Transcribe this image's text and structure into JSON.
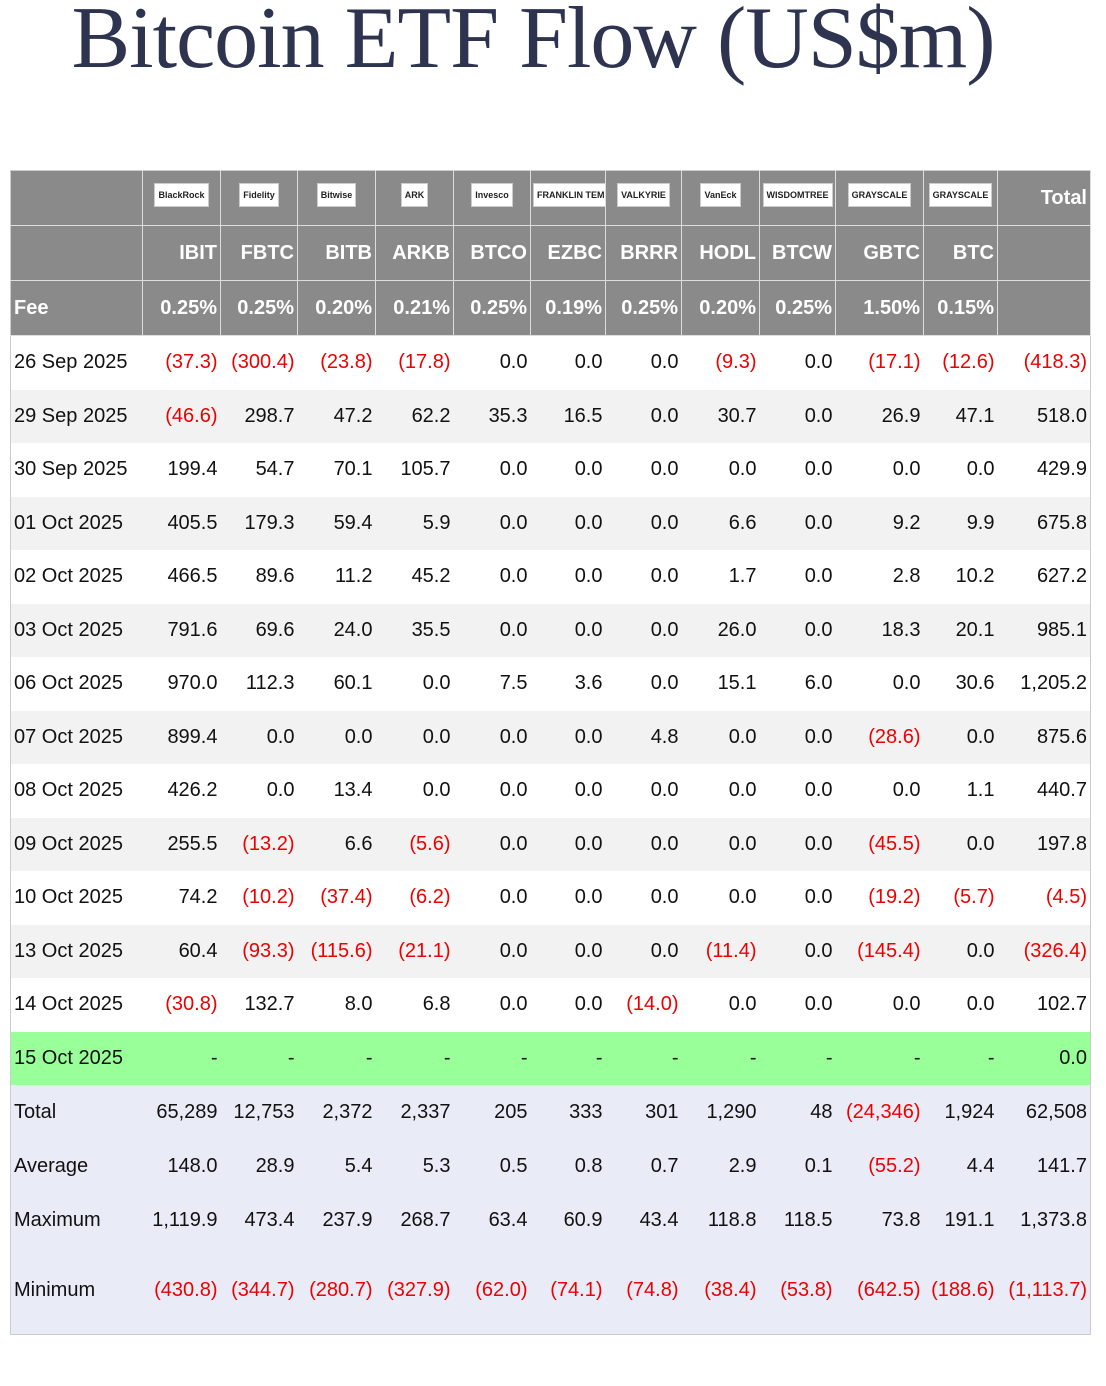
{
  "title": "Bitcoin ETF Flow (US$m)",
  "table": {
    "logos": [
      "BlackRock",
      "Fidelity",
      "Bitwise",
      "ARK",
      "Invesco",
      "FRANKLIN TEMPLETON",
      "VALKYRIE",
      "VanEck",
      "WISDOMTREE",
      "GRAYSCALE",
      "GRAYSCALE"
    ],
    "total_header": "Total",
    "tickers": [
      "IBIT",
      "FBTC",
      "BITB",
      "ARKB",
      "BTCO",
      "EZBC",
      "BRRR",
      "HODL",
      "BTCW",
      "GBTC",
      "BTC"
    ],
    "fee_label": "Fee",
    "fees": [
      "0.25%",
      "0.25%",
      "0.20%",
      "0.21%",
      "0.25%",
      "0.19%",
      "0.25%",
      "0.20%",
      "0.25%",
      "1.50%",
      "0.15%"
    ],
    "rows": [
      [
        "26 Sep 2025",
        "(37.3)",
        "(300.4)",
        "(23.8)",
        "(17.8)",
        "0.0",
        "0.0",
        "0.0",
        "(9.3)",
        "0.0",
        "(17.1)",
        "(12.6)",
        "(418.3)"
      ],
      [
        "29 Sep 2025",
        "(46.6)",
        "298.7",
        "47.2",
        "62.2",
        "35.3",
        "16.5",
        "0.0",
        "30.7",
        "0.0",
        "26.9",
        "47.1",
        "518.0"
      ],
      [
        "30 Sep 2025",
        "199.4",
        "54.7",
        "70.1",
        "105.7",
        "0.0",
        "0.0",
        "0.0",
        "0.0",
        "0.0",
        "0.0",
        "0.0",
        "429.9"
      ],
      [
        "01 Oct 2025",
        "405.5",
        "179.3",
        "59.4",
        "5.9",
        "0.0",
        "0.0",
        "0.0",
        "6.6",
        "0.0",
        "9.2",
        "9.9",
        "675.8"
      ],
      [
        "02 Oct 2025",
        "466.5",
        "89.6",
        "11.2",
        "45.2",
        "0.0",
        "0.0",
        "0.0",
        "1.7",
        "0.0",
        "2.8",
        "10.2",
        "627.2"
      ],
      [
        "03 Oct 2025",
        "791.6",
        "69.6",
        "24.0",
        "35.5",
        "0.0",
        "0.0",
        "0.0",
        "26.0",
        "0.0",
        "18.3",
        "20.1",
        "985.1"
      ],
      [
        "06 Oct 2025",
        "970.0",
        "112.3",
        "60.1",
        "0.0",
        "7.5",
        "3.6",
        "0.0",
        "15.1",
        "6.0",
        "0.0",
        "30.6",
        "1,205.2"
      ],
      [
        "07 Oct 2025",
        "899.4",
        "0.0",
        "0.0",
        "0.0",
        "0.0",
        "0.0",
        "4.8",
        "0.0",
        "0.0",
        "(28.6)",
        "0.0",
        "875.6"
      ],
      [
        "08 Oct 2025",
        "426.2",
        "0.0",
        "13.4",
        "0.0",
        "0.0",
        "0.0",
        "0.0",
        "0.0",
        "0.0",
        "0.0",
        "1.1",
        "440.7"
      ],
      [
        "09 Oct 2025",
        "255.5",
        "(13.2)",
        "6.6",
        "(5.6)",
        "0.0",
        "0.0",
        "0.0",
        "0.0",
        "0.0",
        "(45.5)",
        "0.0",
        "197.8"
      ],
      [
        "10 Oct 2025",
        "74.2",
        "(10.2)",
        "(37.4)",
        "(6.2)",
        "0.0",
        "0.0",
        "0.0",
        "0.0",
        "0.0",
        "(19.2)",
        "(5.7)",
        "(4.5)"
      ],
      [
        "13 Oct 2025",
        "60.4",
        "(93.3)",
        "(115.6)",
        "(21.1)",
        "0.0",
        "0.0",
        "0.0",
        "(11.4)",
        "0.0",
        "(145.4)",
        "0.0",
        "(326.4)"
      ],
      [
        "14 Oct 2025",
        "(30.8)",
        "132.7",
        "8.0",
        "6.8",
        "0.0",
        "0.0",
        "(14.0)",
        "0.0",
        "0.0",
        "0.0",
        "0.0",
        "102.7"
      ],
      [
        "15 Oct 2025",
        "-",
        "-",
        "-",
        "-",
        "-",
        "-",
        "-",
        "-",
        "-",
        "-",
        "-",
        "0.0"
      ]
    ],
    "summary": [
      [
        "Total",
        "65,289",
        "12,753",
        "2,372",
        "2,337",
        "205",
        "333",
        "301",
        "1,290",
        "48",
        "(24,346)",
        "1,924",
        "62,508"
      ],
      [
        "Average",
        "148.0",
        "28.9",
        "5.4",
        "5.3",
        "0.5",
        "0.8",
        "0.7",
        "2.9",
        "0.1",
        "(55.2)",
        "4.4",
        "141.7"
      ],
      [
        "Maximum",
        "1,119.9",
        "473.4",
        "237.9",
        "268.7",
        "63.4",
        "60.9",
        "43.4",
        "118.8",
        "118.5",
        "73.8",
        "191.1",
        "1,373.8"
      ],
      [
        "Minimum",
        "(430.8)",
        "(344.7)",
        "(280.7)",
        "(327.9)",
        "(62.0)",
        "(74.1)",
        "(74.8)",
        "(38.4)",
        "(53.8)",
        "(642.5)",
        "(188.6)",
        "(1,113.7)"
      ]
    ]
  }
}
